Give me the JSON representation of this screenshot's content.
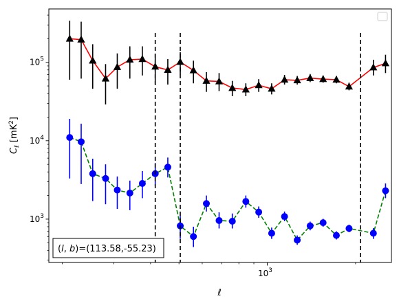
{
  "chart_data": {
    "type": "scatter",
    "xlabel": "ℓ",
    "ylabel": "C_ℓ  [mK²]",
    "xscale": "log",
    "yscale": "log",
    "xlim": [
      180,
      2650
    ],
    "ylim": [
      280,
      480000
    ],
    "x_ticks": [
      {
        "value": 1000,
        "base": "10",
        "exp": "3"
      }
    ],
    "y_ticks": [
      {
        "value": 1000,
        "base": "10",
        "exp": "3"
      },
      {
        "value": 10000,
        "base": "10",
        "exp": "4"
      },
      {
        "value": 100000,
        "base": "10",
        "exp": "5"
      }
    ],
    "vlines": [
      415,
      505,
      2080
    ],
    "annotation": "(l, b)=(113.58,-55.23)",
    "annotation_parts": {
      "l": "l",
      "b": "b",
      "values": "=(113.58,-55.23)"
    },
    "legend": "top-right",
    "series": [
      {
        "color": "#000000",
        "line_color": "#ff0000",
        "line_style": "solid",
        "marker": "triangle",
        "points": [
          {
            "x": 212,
            "y": 200000,
            "lo": 60000,
            "hi": 340000
          },
          {
            "x": 232,
            "y": 195000,
            "lo": 62000,
            "hi": 330000
          },
          {
            "x": 254,
            "y": 105000,
            "lo": 46000,
            "hi": 170000
          },
          {
            "x": 281,
            "y": 62000,
            "lo": 29000,
            "hi": 95000
          },
          {
            "x": 308,
            "y": 87000,
            "lo": 46000,
            "hi": 130000
          },
          {
            "x": 340,
            "y": 108000,
            "lo": 62000,
            "hi": 160000
          },
          {
            "x": 375,
            "y": 110000,
            "lo": 68000,
            "hi": 160000
          },
          {
            "x": 415,
            "y": 88000,
            "lo": 53000,
            "hi": 128000
          },
          {
            "x": 458,
            "y": 80000,
            "lo": 52000,
            "hi": 110000
          },
          {
            "x": 505,
            "y": 101000,
            "lo": 70000,
            "hi": 135000
          },
          {
            "x": 560,
            "y": 79000,
            "lo": 54000,
            "hi": 105000
          },
          {
            "x": 620,
            "y": 58000,
            "lo": 42000,
            "hi": 75000
          },
          {
            "x": 685,
            "y": 57000,
            "lo": 43000,
            "hi": 73000
          },
          {
            "x": 760,
            "y": 47000,
            "lo": 37000,
            "hi": 58000
          },
          {
            "x": 845,
            "y": 45000,
            "lo": 37000,
            "hi": 54000
          },
          {
            "x": 935,
            "y": 51000,
            "lo": 42000,
            "hi": 61000
          },
          {
            "x": 1035,
            "y": 46000,
            "lo": 39000,
            "hi": 54000
          },
          {
            "x": 1145,
            "y": 60000,
            "lo": 52000,
            "hi": 69000
          },
          {
            "x": 1265,
            "y": 59000,
            "lo": 52000,
            "hi": 67000
          },
          {
            "x": 1400,
            "y": 63000,
            "lo": 56000,
            "hi": 71000
          },
          {
            "x": 1550,
            "y": 61000,
            "lo": 55000,
            "hi": 68000
          },
          {
            "x": 1720,
            "y": 60000,
            "lo": 54000,
            "hi": 67000
          },
          {
            "x": 1900,
            "y": 49000,
            "lo": 44000,
            "hi": 55000
          },
          {
            "x": 2300,
            "y": 86000,
            "lo": 68000,
            "hi": 108000
          },
          {
            "x": 2530,
            "y": 97000,
            "lo": 73000,
            "hi": 125000
          }
        ]
      },
      {
        "color": "#0000ff",
        "line_color": "#008000",
        "line_style": "dashed",
        "marker": "circle",
        "points": [
          {
            "x": 212,
            "y": 11000,
            "lo": 3300,
            "hi": 19000
          },
          {
            "x": 232,
            "y": 9700,
            "lo": 2800,
            "hi": 16500
          },
          {
            "x": 254,
            "y": 3800,
            "lo": 1700,
            "hi": 5900
          },
          {
            "x": 281,
            "y": 3300,
            "lo": 1550,
            "hi": 5000
          },
          {
            "x": 308,
            "y": 2350,
            "lo": 1350,
            "hi": 3500
          },
          {
            "x": 340,
            "y": 2150,
            "lo": 1300,
            "hi": 3100
          },
          {
            "x": 375,
            "y": 2850,
            "lo": 1850,
            "hi": 4100
          },
          {
            "x": 415,
            "y": 3800,
            "lo": 2650,
            "hi": 5200
          },
          {
            "x": 458,
            "y": 4600,
            "lo": 3400,
            "hi": 6100
          },
          {
            "x": 505,
            "y": 820,
            "lo": 560,
            "hi": 1100
          },
          {
            "x": 560,
            "y": 600,
            "lo": 440,
            "hi": 800
          },
          {
            "x": 620,
            "y": 1580,
            "lo": 1250,
            "hi": 2000
          },
          {
            "x": 685,
            "y": 960,
            "lo": 760,
            "hi": 1220
          },
          {
            "x": 760,
            "y": 940,
            "lo": 760,
            "hi": 1180
          },
          {
            "x": 845,
            "y": 1680,
            "lo": 1400,
            "hi": 2000
          },
          {
            "x": 935,
            "y": 1230,
            "lo": 1040,
            "hi": 1450
          },
          {
            "x": 1035,
            "y": 660,
            "lo": 560,
            "hi": 780
          },
          {
            "x": 1145,
            "y": 1080,
            "lo": 940,
            "hi": 1250
          },
          {
            "x": 1265,
            "y": 540,
            "lo": 470,
            "hi": 620
          },
          {
            "x": 1400,
            "y": 820,
            "lo": 720,
            "hi": 930
          },
          {
            "x": 1550,
            "y": 900,
            "lo": 800,
            "hi": 1010
          },
          {
            "x": 1720,
            "y": 620,
            "lo": 550,
            "hi": 700
          },
          {
            "x": 1900,
            "y": 760,
            "lo": 680,
            "hi": 850
          },
          {
            "x": 2300,
            "y": 660,
            "lo": 560,
            "hi": 770
          },
          {
            "x": 2530,
            "y": 2300,
            "lo": 1850,
            "hi": 2850
          }
        ]
      }
    ]
  }
}
